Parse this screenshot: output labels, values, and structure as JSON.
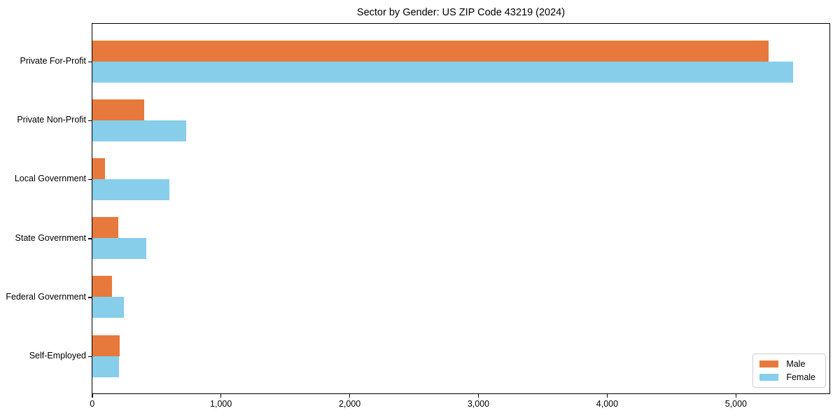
{
  "title": "Sector by Gender: US ZIP Code 43219 (2024)",
  "colors": {
    "male": "#E8793C",
    "female": "#87CEEB",
    "spine": "#000000",
    "legend_border": "#CFCFCF",
    "background": "#FFFFFF"
  },
  "legend": {
    "position": "lower right",
    "items": [
      {
        "label": "Male",
        "color": "#E8793C"
      },
      {
        "label": "Female",
        "color": "#87CEEB"
      }
    ]
  },
  "chart_data": {
    "type": "bar",
    "orientation": "horizontal",
    "title": "Sector by Gender: US ZIP Code 43219 (2024)",
    "categories": [
      "Private For-Profit",
      "Private Non-Profit",
      "Local Government",
      "State Government",
      "Federal Government",
      "Self-Employed"
    ],
    "series": [
      {
        "name": "Male",
        "color": "#E8793C",
        "values": [
          5250,
          400,
          100,
          200,
          150,
          210
        ]
      },
      {
        "name": "Female",
        "color": "#87CEEB",
        "values": [
          5440,
          730,
          600,
          420,
          245,
          205
        ]
      }
    ],
    "xlabel": "",
    "ylabel": "",
    "xlim": [
      0,
      5720
    ],
    "xticks": {
      "values": [
        0,
        1000,
        2000,
        3000,
        4000,
        5000
      ],
      "labels": [
        "0",
        "1,000",
        "2,000",
        "3,000",
        "4,000",
        "5,000"
      ]
    },
    "grid": false,
    "legend_position": "lower right"
  }
}
